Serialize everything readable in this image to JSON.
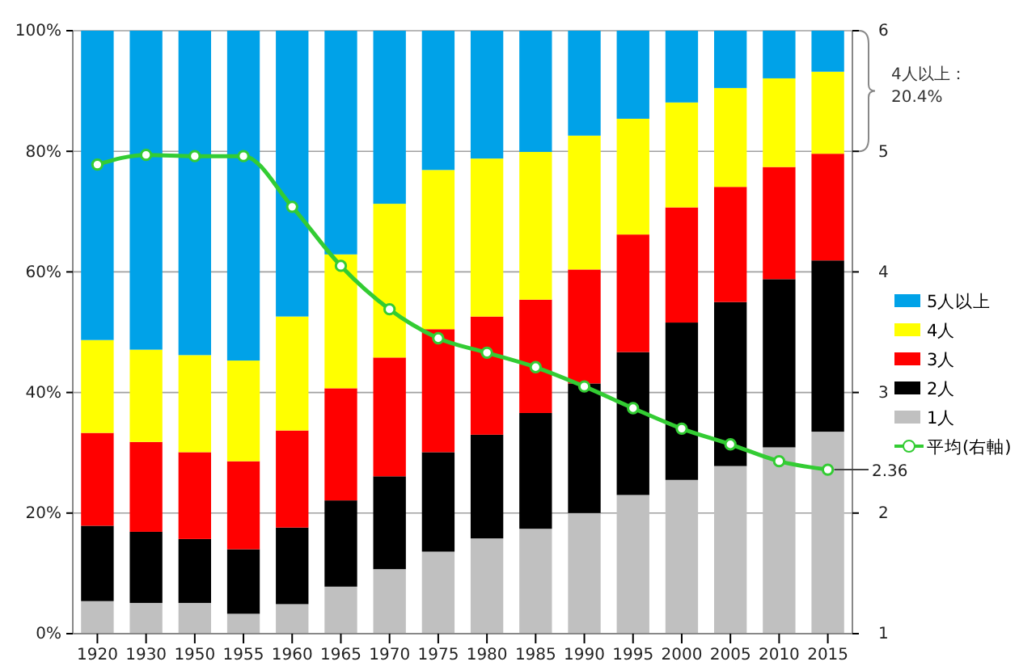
{
  "chart_data": {
    "type": "bar",
    "stacked": true,
    "categories": [
      "1920",
      "1930",
      "1950",
      "1955",
      "1960",
      "1965",
      "1970",
      "1975",
      "1980",
      "1985",
      "1990",
      "1995",
      "2000",
      "2005",
      "2010",
      "2015"
    ],
    "series": [
      {
        "name": "1人",
        "color": "#c0c0c0",
        "values": [
          5.4,
          5.1,
          5.1,
          3.3,
          4.9,
          7.8,
          10.7,
          13.6,
          15.8,
          17.4,
          20.0,
          23.0,
          25.5,
          27.8,
          30.9,
          33.5
        ]
      },
      {
        "name": "2人",
        "color": "#000000",
        "values": [
          12.5,
          11.8,
          10.6,
          10.7,
          12.7,
          14.3,
          15.4,
          16.5,
          17.2,
          19.2,
          21.5,
          23.7,
          26.1,
          27.2,
          27.9,
          28.4
        ]
      },
      {
        "name": "3人",
        "color": "#ff0000",
        "values": [
          15.4,
          14.9,
          14.4,
          14.6,
          16.1,
          18.6,
          19.7,
          20.4,
          19.6,
          18.8,
          18.9,
          19.5,
          19.1,
          19.1,
          18.6,
          17.7
        ]
      },
      {
        "name": "4人",
        "color": "#ffff00",
        "values": [
          15.4,
          15.3,
          16.1,
          16.7,
          18.9,
          22.2,
          25.5,
          26.4,
          26.2,
          24.5,
          22.2,
          19.2,
          17.4,
          16.4,
          14.7,
          13.6
        ]
      },
      {
        "name": "5人以上",
        "color": "#00a2e8",
        "values": [
          51.3,
          52.9,
          53.8,
          54.7,
          47.4,
          37.1,
          28.7,
          23.1,
          21.2,
          20.1,
          17.4,
          14.6,
          11.9,
          9.5,
          7.9,
          6.8
        ]
      },
      {
        "name": "平均(右軸)",
        "type": "line",
        "axis": "y2",
        "color": "#33cc33",
        "marker": "circle",
        "values": [
          4.89,
          4.97,
          4.96,
          4.96,
          4.54,
          4.05,
          3.69,
          3.45,
          3.33,
          3.21,
          3.05,
          2.87,
          2.7,
          2.57,
          2.43,
          2.36
        ]
      }
    ],
    "ylim": [
      0,
      100
    ],
    "yticks": [
      {
        "value": 0,
        "label": "0%"
      },
      {
        "value": 20,
        "label": "20%"
      },
      {
        "value": 40,
        "label": "40%"
      },
      {
        "value": 60,
        "label": "60%"
      },
      {
        "value": 80,
        "label": "80%"
      },
      {
        "value": 100,
        "label": "100%"
      }
    ],
    "y2lim": [
      1,
      6
    ],
    "y2ticks": [
      1,
      2,
      3,
      4,
      5,
      6
    ],
    "grid": "y",
    "legend": "right",
    "annotations": [
      "4人以上：\n20.4%",
      {
        "text": "2.36",
        "x": "2015",
        "y": 27.2
      }
    ]
  }
}
